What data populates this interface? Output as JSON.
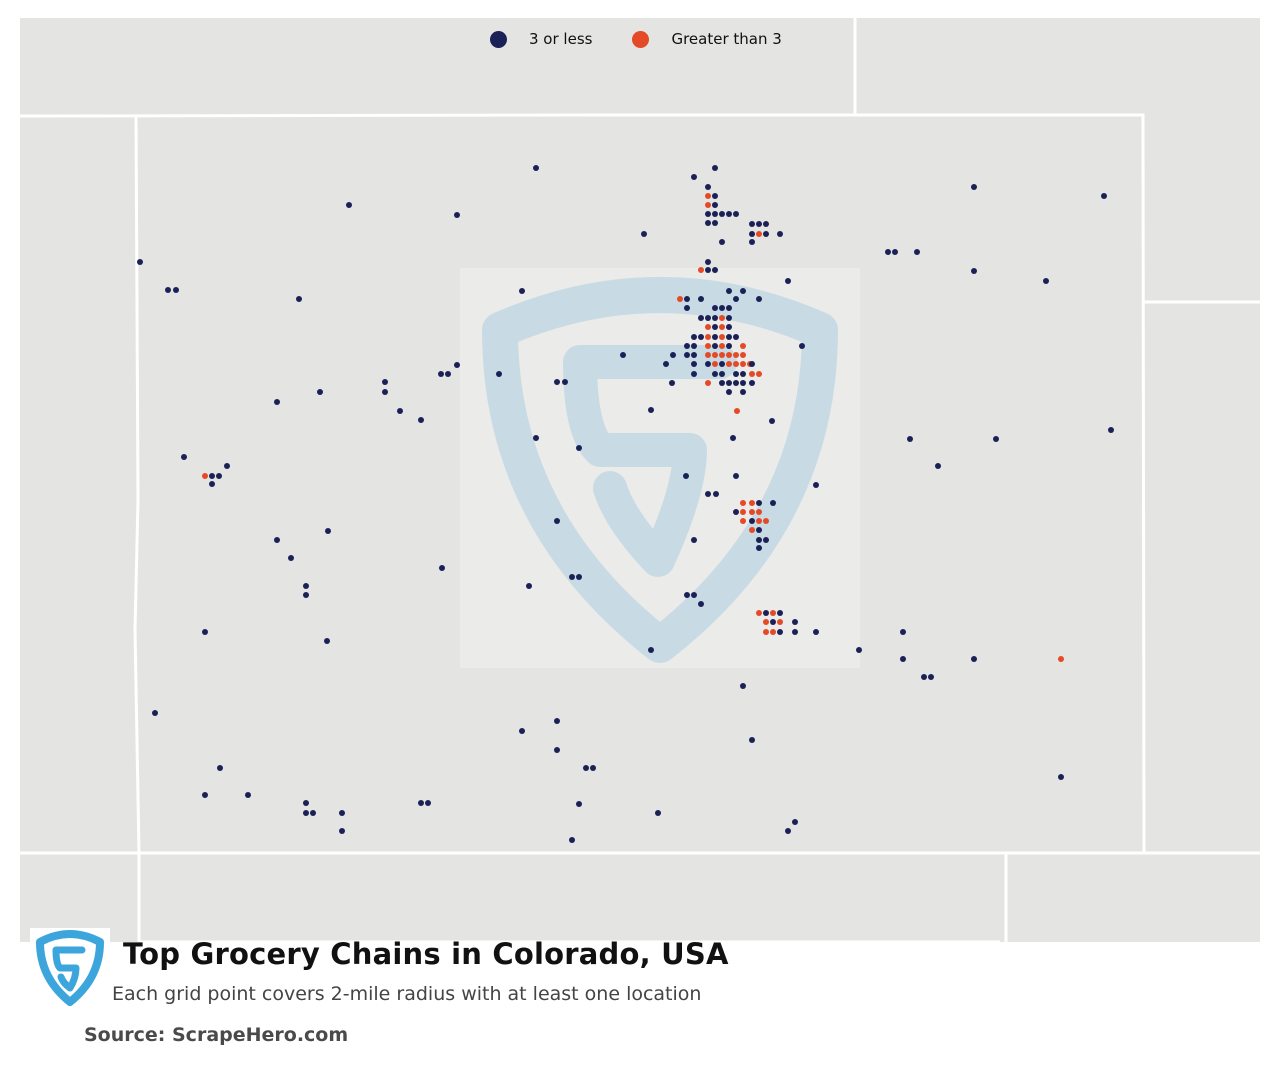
{
  "legend": {
    "items": [
      {
        "label": "3 or less",
        "color": "#1b2157"
      },
      {
        "label": "Greater than 3",
        "color": "#e44a26"
      }
    ]
  },
  "title": "Top Grocery Chains in Colorado, USA",
  "subtitle": "Each grid point covers 2-mile radius with at least one location",
  "source": "Source: ScrapeHero.com",
  "colors": {
    "land": "#e4e4e2",
    "borders": "#ffffff",
    "watermark": "#c8dbe4",
    "logo": "#3ca6dc"
  },
  "icons": {
    "brand_logo": "scrapehero-shield-icon",
    "watermark": "scrapehero-shield-watermark"
  }
}
